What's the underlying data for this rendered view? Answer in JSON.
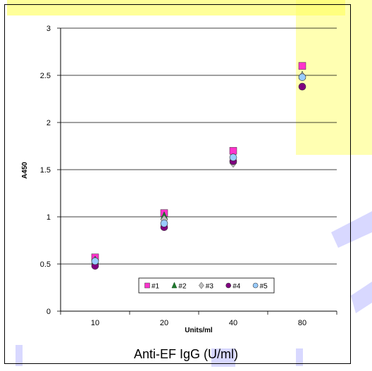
{
  "chart_data": {
    "type": "scatter",
    "xlabel": "Units/ml",
    "ylabel": "A450",
    "categories": [
      "10",
      "20",
      "40",
      "80"
    ],
    "ylim": [
      0,
      3
    ],
    "yticks": [
      "0",
      "0.5",
      "1",
      "1.5",
      "2",
      "2.5",
      "3"
    ],
    "grid": true,
    "legend_position": "bottom-center",
    "series": [
      {
        "name": "#1",
        "marker": "square",
        "color": "#ff33cc",
        "values": [
          0.57,
          1.04,
          1.7,
          2.6
        ]
      },
      {
        "name": "#2",
        "marker": "triangle",
        "color": "#1f7a2e",
        "values": [
          0.54,
          1.01,
          1.62,
          2.5
        ]
      },
      {
        "name": "#3",
        "marker": "diamond",
        "color": "#c0c0c0",
        "values": [
          0.52,
          0.97,
          1.57,
          2.49
        ]
      },
      {
        "name": "#4",
        "marker": "circle",
        "color": "#800080",
        "values": [
          0.48,
          0.89,
          1.59,
          2.38
        ]
      },
      {
        "name": "#5",
        "marker": "circle",
        "color": "#99ccff",
        "values": [
          0.53,
          0.93,
          1.63,
          2.48
        ]
      }
    ]
  },
  "caption": "Anti-EF IgG (U/ml)",
  "colors": {
    "background_highlight": "#ffff66",
    "watermark": "#c8c8ff"
  }
}
